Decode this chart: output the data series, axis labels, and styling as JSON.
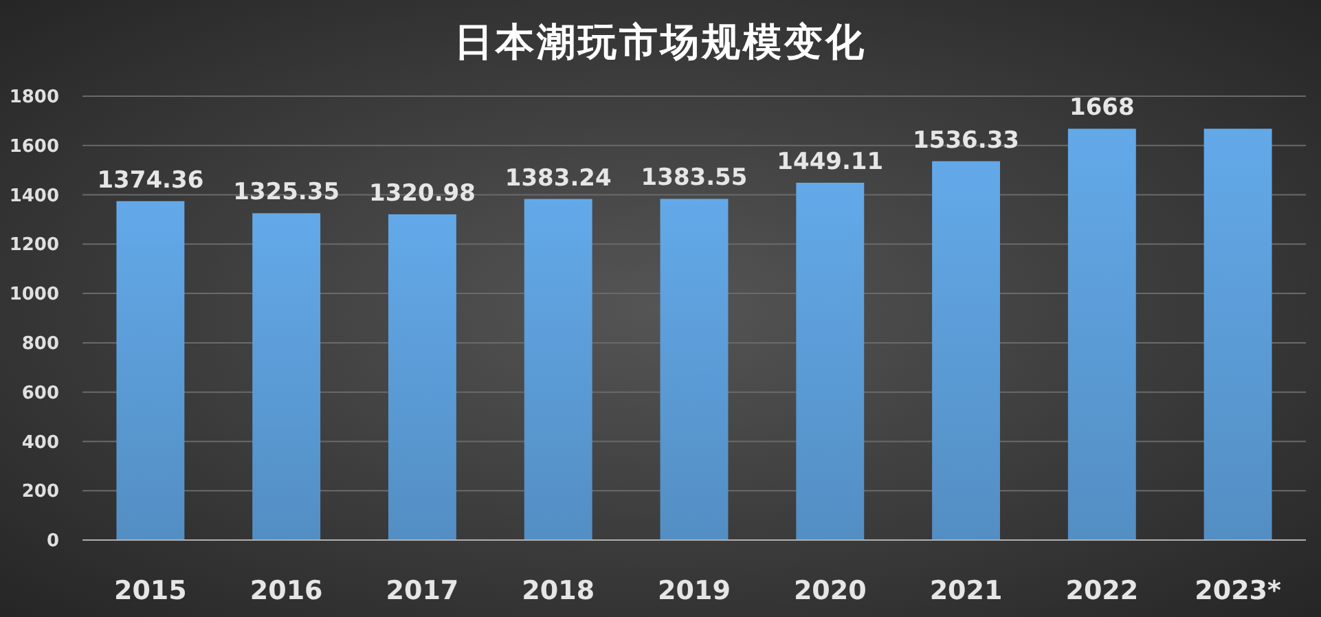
{
  "chart_data": {
    "type": "bar",
    "title": "日本潮玩市场规模变化",
    "categories": [
      "2015",
      "2016",
      "2017",
      "2018",
      "2019",
      "2020",
      "2021",
      "2022",
      "2023*"
    ],
    "values": [
      1374.36,
      1325.35,
      1320.98,
      1383.24,
      1383.55,
      1449.11,
      1536.33,
      1668,
      1668
    ],
    "value_labels": [
      "1374.36",
      "1325.35",
      "1320.98",
      "1383.24",
      "1383.55",
      "1449.11",
      "1536.33",
      "1668",
      null
    ],
    "color": "#5b9bd5",
    "ylim": [
      0,
      1800
    ],
    "yticks": [
      0,
      200,
      400,
      600,
      800,
      1000,
      1200,
      1400,
      1600,
      1800
    ],
    "grid": "y"
  }
}
